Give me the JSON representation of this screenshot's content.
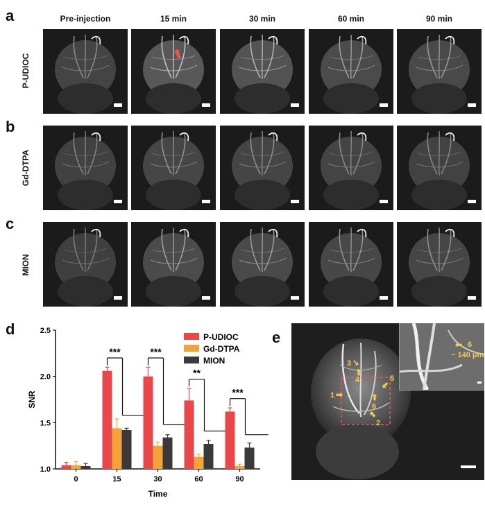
{
  "figure": {
    "panel_letters": [
      "a",
      "b",
      "c",
      "d",
      "e"
    ],
    "column_headers": [
      "Pre-injection",
      "15 min",
      "30 min",
      "60 min",
      "90 min"
    ],
    "row_labels": [
      "P-UDIOC",
      "Gd-DTPA",
      "MION"
    ],
    "arrow_color": "#e8524f"
  },
  "chart_data": {
    "type": "bar",
    "xlabel": "Time",
    "ylabel": "SNR",
    "categories": [
      "0",
      "15",
      "30",
      "60",
      "90"
    ],
    "ylim": [
      1.0,
      2.5
    ],
    "yticks": [
      "1.0",
      "1.5",
      "2.0",
      "2.5"
    ],
    "legend_position": "top-right",
    "series": [
      {
        "name": "P-UDIOC",
        "color": "#e8484a",
        "values": [
          1.04,
          2.06,
          2.0,
          1.74,
          1.62
        ],
        "errors": [
          0.03,
          0.04,
          0.1,
          0.13,
          0.04
        ]
      },
      {
        "name": "Gd-DTPA",
        "color": "#f4a33a",
        "values": [
          1.04,
          1.44,
          1.25,
          1.13,
          1.03
        ],
        "errors": [
          0.04,
          0.1,
          0.04,
          0.03,
          0.02
        ]
      },
      {
        "name": "MION",
        "color": "#3a3a3a",
        "values": [
          1.03,
          1.42,
          1.34,
          1.27,
          1.23
        ],
        "errors": [
          0.03,
          0.02,
          0.03,
          0.04,
          0.05
        ]
      }
    ],
    "significance": [
      "***",
      "***",
      "**",
      "***"
    ]
  },
  "panel_e": {
    "labels": [
      "1",
      "2",
      "3",
      "4",
      "5",
      "6"
    ],
    "inset_label": "6",
    "inset_measure": "~ 140 μm",
    "box_color": "#e05a5a",
    "label_color": "#f2c94c"
  }
}
